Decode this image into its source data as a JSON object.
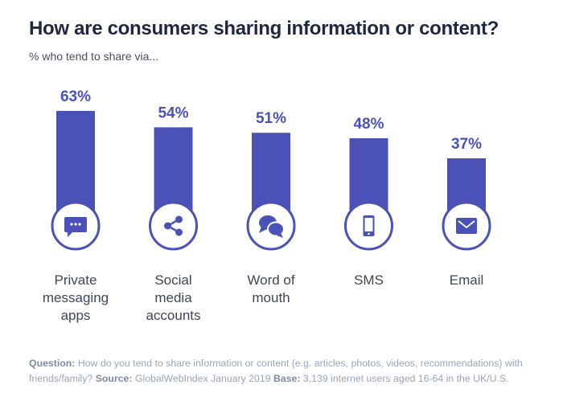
{
  "chart_data": {
    "type": "bar",
    "title": "How are consumers sharing information or content?",
    "subtitle": "% who tend to share via...",
    "categories": [
      "Private messaging apps",
      "Social media accounts",
      "Word of mouth",
      "SMS",
      "Email"
    ],
    "category_lines": [
      [
        "Private",
        "messaging",
        "apps"
      ],
      [
        "Social",
        "media",
        "accounts"
      ],
      [
        "Word of",
        "mouth"
      ],
      [
        "SMS"
      ],
      [
        "Email"
      ]
    ],
    "values": [
      63,
      54,
      51,
      48,
      37
    ],
    "value_labels": [
      "63%",
      "54%",
      "51%",
      "48%",
      "37%"
    ],
    "icons": [
      "chat-bubble-icon",
      "share-icon",
      "speech-bubbles-icon",
      "mobile-phone-icon",
      "envelope-icon"
    ],
    "unit": "%",
    "grid": false,
    "legend": "none",
    "color": "#4a52b8"
  },
  "footer": {
    "question_label": "Question:",
    "question_text": "How do you tend to share information or content (e.g. articles, photos, videos, recommendations) with friends/family?",
    "source_label": "Source:",
    "source_text": "GlobalWebIndex January 2019",
    "base_label": "Base:",
    "base_text": "3,139 internet users aged 16-64 in the UK/U.S."
  }
}
